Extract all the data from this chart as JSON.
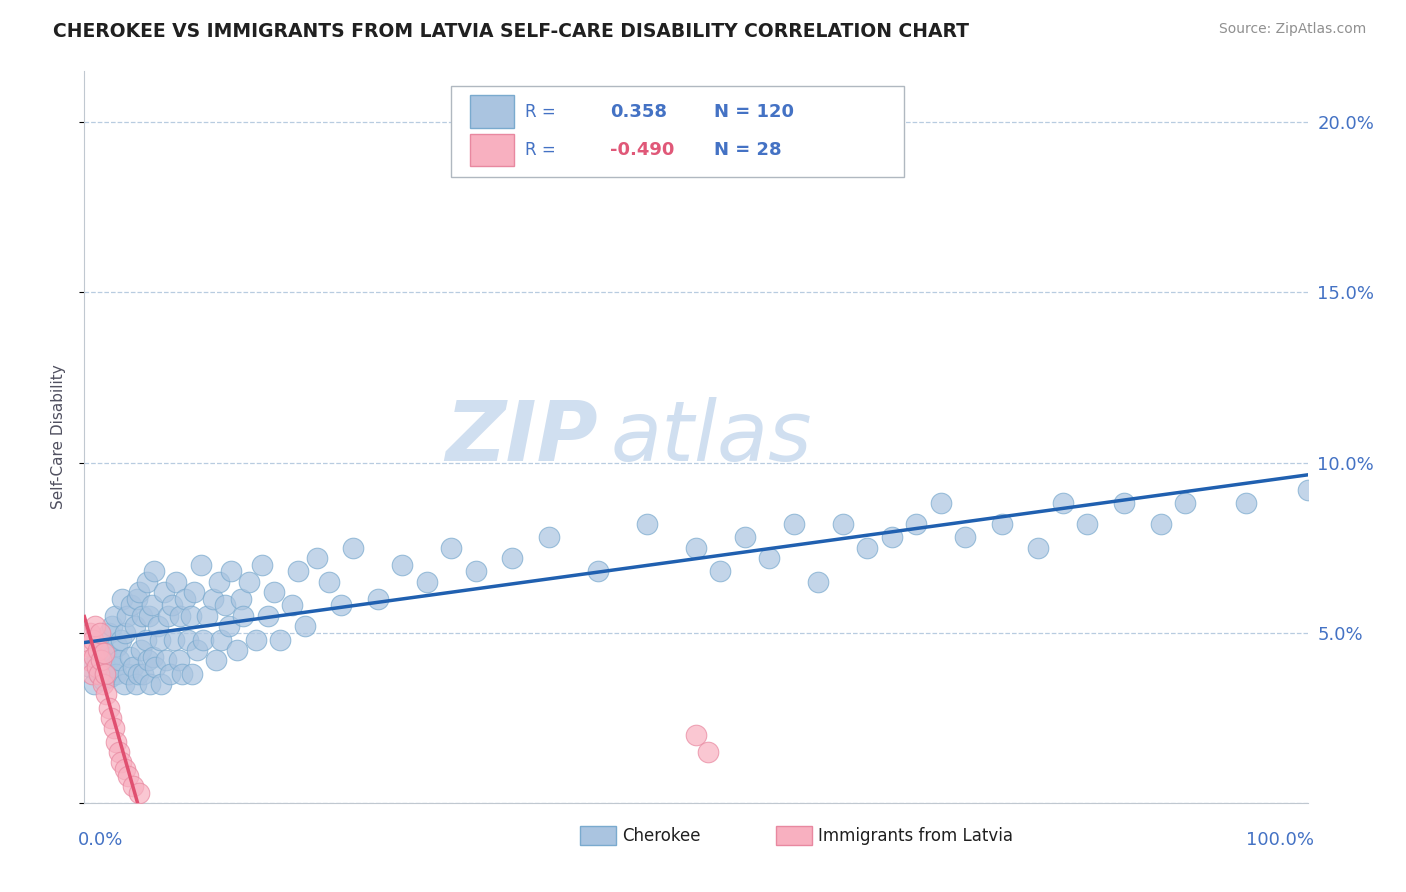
{
  "title": "CHEROKEE VS IMMIGRANTS FROM LATVIA SELF-CARE DISABILITY CORRELATION CHART",
  "source": "Source: ZipAtlas.com",
  "ylabel": "Self-Care Disability",
  "yticks": [
    0.0,
    0.05,
    0.1,
    0.15,
    0.2
  ],
  "ytick_labels": [
    "",
    "5.0%",
    "10.0%",
    "15.0%",
    "20.0%"
  ],
  "xlim": [
    0,
    1.0
  ],
  "ylim": [
    0.0,
    0.215
  ],
  "cherokee_R": 0.358,
  "cherokee_N": 120,
  "latvia_R": -0.49,
  "latvia_N": 28,
  "cherokee_color": "#aac4e0",
  "cherokee_edge_color": "#7aaace",
  "cherokee_line_color": "#2060b0",
  "latvia_color": "#f8b0c0",
  "latvia_edge_color": "#e888a0",
  "latvia_line_color": "#e05070",
  "background_color": "#ffffff",
  "grid_color": "#b8cce0",
  "title_color": "#202020",
  "axis_label_color": "#4472c4",
  "watermark_color": "#d0dff0",
  "cherokee_x": [
    0.005,
    0.008,
    0.01,
    0.012,
    0.013,
    0.015,
    0.015,
    0.016,
    0.017,
    0.018,
    0.02,
    0.021,
    0.022,
    0.023,
    0.024,
    0.025,
    0.026,
    0.027,
    0.028,
    0.03,
    0.031,
    0.032,
    0.033,
    0.035,
    0.036,
    0.037,
    0.038,
    0.04,
    0.041,
    0.042,
    0.043,
    0.044,
    0.045,
    0.046,
    0.047,
    0.048,
    0.05,
    0.051,
    0.052,
    0.053,
    0.054,
    0.055,
    0.056,
    0.057,
    0.058,
    0.06,
    0.062,
    0.063,
    0.065,
    0.067,
    0.068,
    0.07,
    0.072,
    0.073,
    0.075,
    0.077,
    0.078,
    0.08,
    0.082,
    0.085,
    0.087,
    0.088,
    0.09,
    0.092,
    0.095,
    0.097,
    0.1,
    0.105,
    0.108,
    0.11,
    0.112,
    0.115,
    0.118,
    0.12,
    0.125,
    0.128,
    0.13,
    0.135,
    0.14,
    0.145,
    0.15,
    0.155,
    0.16,
    0.17,
    0.175,
    0.18,
    0.19,
    0.2,
    0.21,
    0.22,
    0.24,
    0.26,
    0.28,
    0.3,
    0.32,
    0.35,
    0.38,
    0.42,
    0.46,
    0.5,
    0.52,
    0.54,
    0.56,
    0.58,
    0.6,
    0.62,
    0.64,
    0.66,
    0.68,
    0.7,
    0.72,
    0.75,
    0.78,
    0.8,
    0.82,
    0.85,
    0.88,
    0.9,
    0.95,
    1.0
  ],
  "cherokee_y": [
    0.04,
    0.035,
    0.042,
    0.038,
    0.045,
    0.036,
    0.048,
    0.041,
    0.038,
    0.044,
    0.05,
    0.037,
    0.043,
    0.052,
    0.04,
    0.055,
    0.038,
    0.046,
    0.042,
    0.048,
    0.06,
    0.035,
    0.05,
    0.055,
    0.038,
    0.043,
    0.058,
    0.04,
    0.052,
    0.035,
    0.06,
    0.038,
    0.062,
    0.045,
    0.055,
    0.038,
    0.048,
    0.065,
    0.042,
    0.055,
    0.035,
    0.058,
    0.043,
    0.068,
    0.04,
    0.052,
    0.048,
    0.035,
    0.062,
    0.042,
    0.055,
    0.038,
    0.058,
    0.048,
    0.065,
    0.042,
    0.055,
    0.038,
    0.06,
    0.048,
    0.055,
    0.038,
    0.062,
    0.045,
    0.07,
    0.048,
    0.055,
    0.06,
    0.042,
    0.065,
    0.048,
    0.058,
    0.052,
    0.068,
    0.045,
    0.06,
    0.055,
    0.065,
    0.048,
    0.07,
    0.055,
    0.062,
    0.048,
    0.058,
    0.068,
    0.052,
    0.072,
    0.065,
    0.058,
    0.075,
    0.06,
    0.07,
    0.065,
    0.075,
    0.068,
    0.072,
    0.078,
    0.068,
    0.082,
    0.075,
    0.068,
    0.078,
    0.072,
    0.082,
    0.065,
    0.082,
    0.075,
    0.078,
    0.082,
    0.088,
    0.078,
    0.082,
    0.075,
    0.088,
    0.082,
    0.088,
    0.082,
    0.088,
    0.088,
    0.092
  ],
  "latvia_x": [
    0.003,
    0.004,
    0.005,
    0.006,
    0.007,
    0.008,
    0.009,
    0.01,
    0.011,
    0.012,
    0.013,
    0.014,
    0.015,
    0.016,
    0.017,
    0.018,
    0.02,
    0.022,
    0.024,
    0.026,
    0.028,
    0.03,
    0.033,
    0.036,
    0.04,
    0.045,
    0.5,
    0.51
  ],
  "latvia_y": [
    0.046,
    0.042,
    0.05,
    0.038,
    0.048,
    0.043,
    0.052,
    0.04,
    0.045,
    0.038,
    0.05,
    0.042,
    0.035,
    0.044,
    0.038,
    0.032,
    0.028,
    0.025,
    0.022,
    0.018,
    0.015,
    0.012,
    0.01,
    0.008,
    0.005,
    0.003,
    0.02,
    0.015
  ],
  "latvia_trend_x": [
    0.0,
    0.06
  ],
  "cherokee_trend_x": [
    0.0,
    1.0
  ]
}
